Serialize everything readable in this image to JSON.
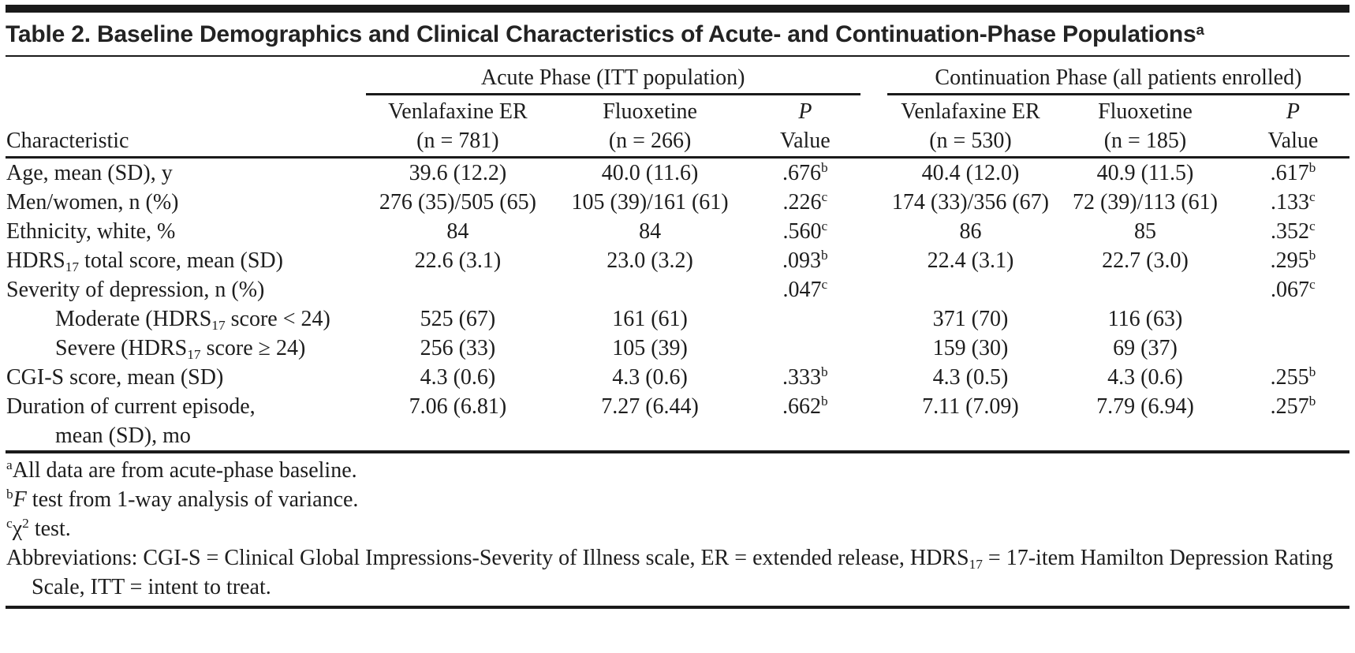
{
  "title": {
    "text": "Table 2. Baseline Demographics and Clinical Characteristics of Acute- and Continuation-Phase Populations",
    "footnote_marker": "a"
  },
  "table": {
    "characteristic_header": "Characteristic",
    "groups": [
      {
        "label": "Acute Phase (ITT population)"
      },
      {
        "label": "Continuation Phase (all patients enrolled)"
      }
    ],
    "columns": [
      {
        "line1": "Venlafaxine ER",
        "line2": "(n = 781)"
      },
      {
        "line1": "Fluoxetine",
        "line2": "(n = 266)"
      },
      {
        "line1": "*P*",
        "line2": "Value"
      },
      {
        "line1": "Venlafaxine ER",
        "line2": "(n = 530)"
      },
      {
        "line1": "Fluoxetine",
        "line2": "(n = 185)"
      },
      {
        "line1": "*P*",
        "line2": "Value"
      }
    ],
    "rows": [
      {
        "label": "Age, mean (SD), y",
        "indent": 0,
        "cells": [
          "39.6 (12.2)",
          "40.0 (11.6)",
          ".676^b^",
          "40.4 (12.0)",
          "40.9 (11.5)",
          ".617^b^"
        ]
      },
      {
        "label": "Men/women, n (%)",
        "indent": 0,
        "cells": [
          "276 (35)/505 (65)",
          "105 (39)/161 (61)",
          ".226^c^",
          "174 (33)/356 (67)",
          "72 (39)/113 (61)",
          ".133^c^"
        ]
      },
      {
        "label": "Ethnicity, white, %",
        "indent": 0,
        "cells": [
          "84",
          "84",
          ".560^c^",
          "86",
          "85",
          ".352^c^"
        ]
      },
      {
        "label": "HDRS~17~ total score, mean (SD)",
        "indent": 0,
        "cells": [
          "22.6 (3.1)",
          "23.0 (3.2)",
          ".093^b^",
          "22.4 (3.1)",
          "22.7 (3.0)",
          ".295^b^"
        ]
      },
      {
        "label": "Severity of depression, n (%)",
        "indent": 0,
        "cells": [
          "",
          "",
          ".047^c^",
          "",
          "",
          ".067^c^"
        ]
      },
      {
        "label": "Moderate (HDRS~17~ score < 24)",
        "indent": 1,
        "cells": [
          "525 (67)",
          "161 (61)",
          "",
          "371 (70)",
          "116 (63)",
          ""
        ]
      },
      {
        "label": "Severe (HDRS~17~ score ≥ 24)",
        "indent": 1,
        "cells": [
          "256 (33)",
          "105 (39)",
          "",
          "159 (30)",
          "69 (37)",
          ""
        ]
      },
      {
        "label": "CGI-S score, mean (SD)",
        "indent": 0,
        "cells": [
          "4.3 (0.6)",
          "4.3 (0.6)",
          ".333^b^",
          "4.3 (0.5)",
          "4.3 (0.6)",
          ".255^b^"
        ]
      },
      {
        "label": "Duration of current episode,\nmean (SD), mo",
        "indent": 0,
        "cells": [
          "7.06 (6.81)",
          "7.27 (6.44)",
          ".662^b^",
          "7.11 (7.09)",
          "7.79 (6.94)",
          ".257^b^"
        ]
      }
    ]
  },
  "footnotes": [
    "^a^All data are from acute-phase baseline.",
    "^b^*F* test from 1-way analysis of variance.",
    "^c^χ^2^ test.",
    "Abbreviations: CGI-S = Clinical Global Impressions-Severity of Illness scale, ER = extended release, HDRS~17~ = 17-item Hamilton Depression Rating Scale, ITT = intent to treat."
  ],
  "colors": {
    "text": "#1d1d1d",
    "rule": "#1a1a1a",
    "background": "#ffffff"
  }
}
